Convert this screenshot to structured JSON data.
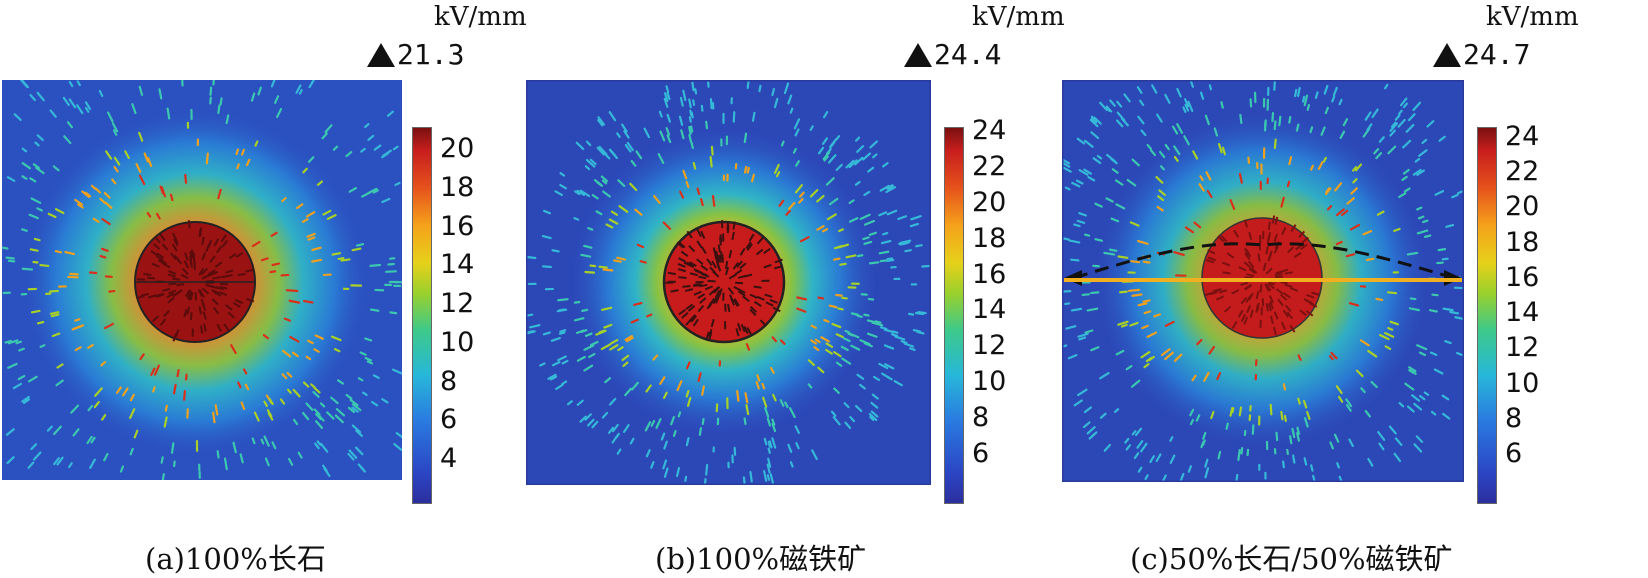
{
  "panels": [
    {
      "unit": "kV/mm",
      "max": "21.3",
      "ticks": [
        "20",
        "18",
        "16",
        "14",
        "12",
        "10",
        "8",
        "6",
        "4"
      ],
      "caption": "(a)100%长石"
    },
    {
      "unit": "kV/mm",
      "max": "24.4",
      "ticks": [
        "24",
        "22",
        "20",
        "18",
        "16",
        "14",
        "12",
        "10",
        "8",
        "6"
      ],
      "caption": "(b)100%磁铁矿"
    },
    {
      "unit": "kV/mm",
      "max": "24.7",
      "ticks": [
        "24",
        "22",
        "20",
        "18",
        "16",
        "14",
        "12",
        "10",
        "8",
        "6"
      ],
      "caption": "(c)50%长石/50%磁铁矿"
    }
  ],
  "colors": {
    "background": "#2b47b8",
    "particle": "#b01818",
    "highlight_line": "#f0b020"
  }
}
